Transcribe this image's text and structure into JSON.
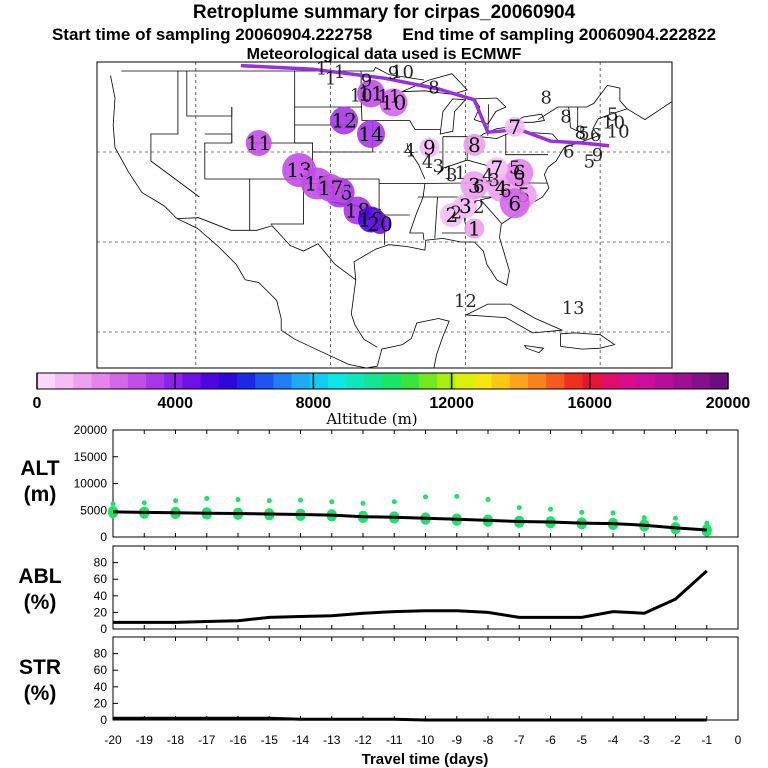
{
  "header": {
    "title": "Retroplume summary for cirpas_20060904",
    "start_label": "Start time of sampling 20060904.222758",
    "end_label": "End time of sampling 20060904.222822",
    "met_label": "Meteorological data used is ECMWF"
  },
  "colors": {
    "marker": "#22e06a",
    "line": "#000000",
    "track": "#9a2ee6",
    "colorbar": [
      "#fbd7fb",
      "#f5bcf5",
      "#eda0ef",
      "#e484ec",
      "#d466ea",
      "#c24ce8",
      "#a935e8",
      "#8d22e8",
      "#6e11e6",
      "#4d05e0",
      "#2d07dc",
      "#1c28e6",
      "#1e55ee",
      "#1f7ff2",
      "#1faaf4",
      "#14ccf0",
      "#0ce6e6",
      "#0ee6be",
      "#14e494",
      "#1ce46a",
      "#3ae43e",
      "#72e81e",
      "#a8ee10",
      "#daf00c",
      "#f6e610",
      "#fbc814",
      "#fba51c",
      "#f9821e",
      "#f55a20",
      "#ef301e",
      "#e81438",
      "#e00e68",
      "#d90c8e",
      "#cb0e9c",
      "#b60e9a",
      "#9e1092",
      "#84108a",
      "#6c0e7c"
    ]
  },
  "map": {
    "points": [
      {
        "label": "1",
        "lon": -84.0,
        "lat": 31.5,
        "alt": 1200,
        "size": 10
      },
      {
        "label": "2",
        "lon": -86.5,
        "lat": 33.0,
        "alt": 1000,
        "size": 12
      },
      {
        "label": "3",
        "lon": -85.0,
        "lat": 34.0,
        "alt": 900,
        "size": 12
      },
      {
        "label": "3",
        "lon": -84.0,
        "lat": 36.3,
        "alt": 1500,
        "size": 14
      },
      {
        "label": "4",
        "lon": -81.0,
        "lat": 36.0,
        "alt": 1200,
        "size": 14
      },
      {
        "label": "5",
        "lon": -78.5,
        "lat": 35.2,
        "alt": 1100,
        "size": 13
      },
      {
        "label": "6",
        "lon": -79.5,
        "lat": 34.3,
        "alt": 2400,
        "size": 15
      },
      {
        "label": "6",
        "lon": -79.0,
        "lat": 37.7,
        "alt": 1900,
        "size": 14
      },
      {
        "label": "7",
        "lon": -81.5,
        "lat": 38.2,
        "alt": 1000,
        "size": 11
      },
      {
        "label": "7",
        "lon": -79.5,
        "lat": 42.8,
        "alt": 900,
        "size": 10
      },
      {
        "label": "8",
        "lon": -84.0,
        "lat": 40.8,
        "alt": 1300,
        "size": 11
      },
      {
        "label": "9",
        "lon": -89.0,
        "lat": 40.5,
        "alt": 1000,
        "size": 10
      },
      {
        "label": "10",
        "lon": -93.0,
        "lat": 45.5,
        "alt": 2500,
        "size": 14
      },
      {
        "label": "11",
        "lon": -95.5,
        "lat": 46.5,
        "alt": 2800,
        "size": 14
      },
      {
        "label": "11",
        "lon": -108.0,
        "lat": 41.0,
        "alt": 2800,
        "size": 13
      },
      {
        "label": "12",
        "lon": -98.5,
        "lat": 43.5,
        "alt": 3500,
        "size": 14
      },
      {
        "label": "13",
        "lon": -103.5,
        "lat": 38.0,
        "alt": 2900,
        "size": 17
      },
      {
        "label": "14",
        "lon": -95.5,
        "lat": 42.0,
        "alt": 3200,
        "size": 14
      },
      {
        "label": "15",
        "lon": -101.5,
        "lat": 36.5,
        "alt": 3100,
        "size": 16
      },
      {
        "label": "16",
        "lon": -99.0,
        "lat": 35.5,
        "alt": 3300,
        "size": 15
      },
      {
        "label": "17",
        "lon": -100.0,
        "lat": 36.0,
        "alt": 3000,
        "size": 14
      },
      {
        "label": "18",
        "lon": -97.0,
        "lat": 33.5,
        "alt": 3600,
        "size": 14
      },
      {
        "label": "19",
        "lon": -95.5,
        "lat": 32.5,
        "alt": 4800,
        "size": 13
      },
      {
        "label": "20",
        "lon": -94.5,
        "lat": 32.0,
        "alt": 4600,
        "size": 10
      }
    ],
    "track_labels": [
      "1",
      "1",
      "1",
      "1",
      "2",
      "2",
      "3",
      "4",
      "5",
      "5",
      "6",
      "6",
      "8",
      "9",
      "9",
      "10",
      "10",
      "11",
      "12",
      "13",
      "5",
      "5",
      "6",
      "6",
      "8",
      "9",
      "10",
      "10",
      "11",
      "4",
      "4",
      "3",
      "3",
      "5",
      "8",
      "8"
    ]
  },
  "colorbar": {
    "ticks": [
      "0",
      "4000",
      "8000",
      "12000",
      "16000",
      "20000"
    ],
    "label": "Altitude (m)"
  },
  "chart_data": [
    {
      "type": "line",
      "name": "ALT",
      "ylabel": "ALT\n(m)",
      "ylabel_lines": [
        "ALT",
        "(m)"
      ],
      "ylim": [
        0,
        20000
      ],
      "yticks": [
        "0",
        "5000",
        "10000",
        "15000",
        "20000"
      ],
      "x": [
        -20,
        -19,
        -18,
        -17,
        -16,
        -15,
        -14,
        -13,
        -12,
        -11,
        -10,
        -9,
        -8,
        -7,
        -6,
        -5,
        -4,
        -3,
        -2,
        -1
      ],
      "series": [
        {
          "name": "mean altitude",
          "values": [
            4700,
            4600,
            4550,
            4450,
            4400,
            4300,
            4200,
            4100,
            3800,
            3700,
            3500,
            3300,
            3100,
            2900,
            2800,
            2600,
            2500,
            2200,
            1700,
            1300
          ]
        },
        {
          "name": "upper particles",
          "values": [
            6200,
            6400,
            6800,
            7200,
            7000,
            6800,
            6900,
            6600,
            6300,
            6600,
            7500,
            7600,
            7000,
            5500,
            5200,
            4600,
            4500,
            3600,
            3500,
            2600
          ]
        }
      ]
    },
    {
      "type": "line",
      "name": "ABL",
      "ylabel": "ABL\n(%)",
      "ylabel_lines": [
        "ABL",
        "(%)"
      ],
      "ylim": [
        0,
        100
      ],
      "yticks": [
        "0",
        "20",
        "40",
        "60",
        "80"
      ],
      "x": [
        -20,
        -19,
        -18,
        -17,
        -16,
        -15,
        -14,
        -13,
        -12,
        -11,
        -10,
        -9,
        -8,
        -7,
        -6,
        -5,
        -4,
        -3,
        -2,
        -1
      ],
      "values": [
        8,
        8,
        8,
        9,
        10,
        14,
        15,
        16,
        19,
        21,
        22,
        22,
        20,
        14,
        14,
        14,
        21,
        19,
        36,
        70
      ]
    },
    {
      "type": "line",
      "name": "STR",
      "ylabel": "STR\n(%)",
      "ylabel_lines": [
        "STR",
        "(%)"
      ],
      "ylim": [
        0,
        100
      ],
      "yticks": [
        "0",
        "20",
        "40",
        "60",
        "80"
      ],
      "x": [
        -20,
        -19,
        -18,
        -17,
        -16,
        -15,
        -14,
        -13,
        -12,
        -11,
        -10,
        -9,
        -8,
        -7,
        -6,
        -5,
        -4,
        -3,
        -2,
        -1
      ],
      "values": [
        2,
        2,
        2,
        2,
        2,
        2,
        1,
        1,
        1,
        1,
        0,
        0,
        0,
        0,
        0,
        0,
        0,
        0,
        0,
        0
      ],
      "xticks": [
        "-20",
        "-19",
        "-18",
        "-17",
        "-16",
        "-15",
        "-14",
        "-13",
        "-12",
        "-11",
        "-10",
        "-9",
        "-8",
        "-7",
        "-6",
        "-5",
        "-4",
        "-3",
        "-2",
        "-1",
        "0"
      ],
      "xlabel": "Travel time (days)"
    }
  ]
}
